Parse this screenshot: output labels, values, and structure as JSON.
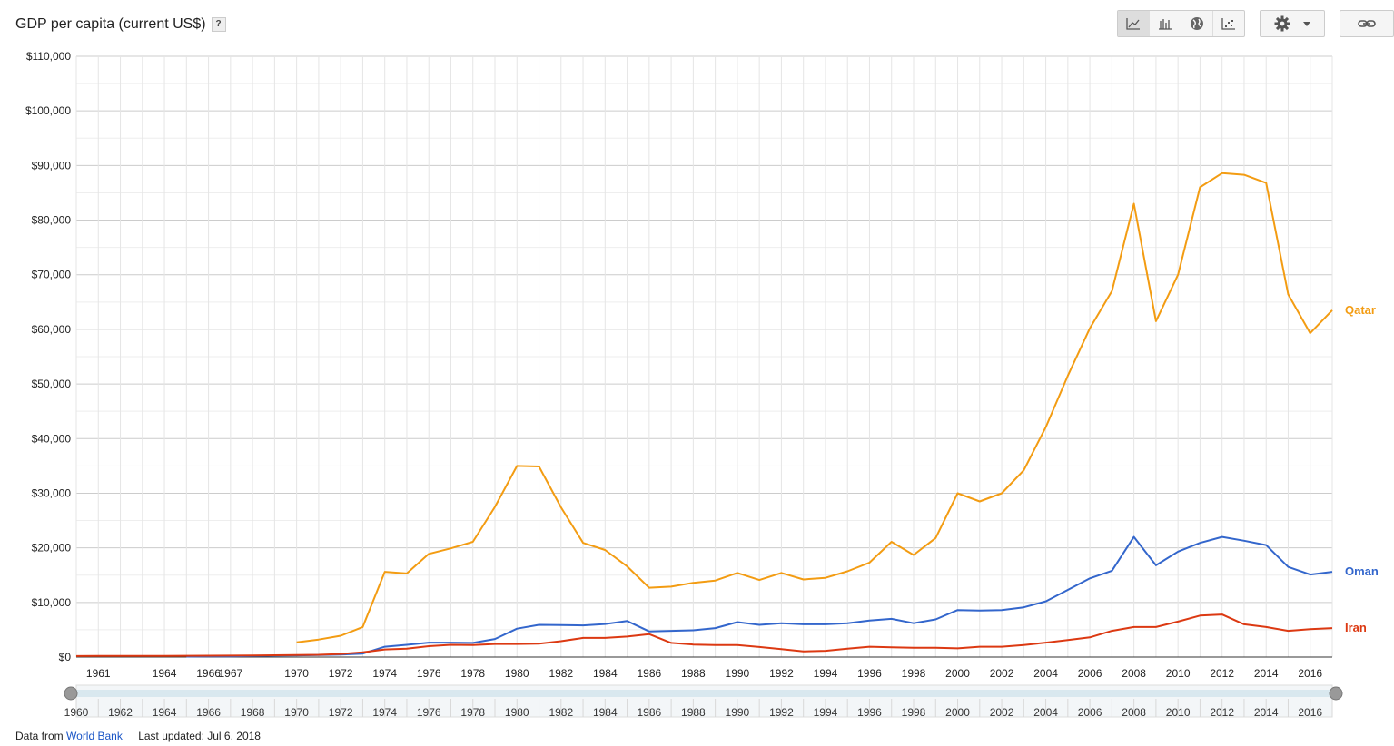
{
  "title": "GDP per capita (current US$)",
  "help_label": "?",
  "toolbar": {
    "buttons": [
      {
        "icon": "line-chart-icon",
        "active": true
      },
      {
        "icon": "bar-chart-icon",
        "active": false
      },
      {
        "icon": "globe-icon",
        "active": false
      },
      {
        "icon": "scatter-chart-icon",
        "active": false
      }
    ],
    "settings_icon": "gear-icon",
    "dropdown_icon": "caret-down-icon",
    "link_icon": "link-icon"
  },
  "footer": {
    "prefix": "Data from",
    "source": "World Bank",
    "updated": "Last updated: Jul 6, 2018"
  },
  "chart_data": {
    "type": "line",
    "title": "GDP per capita (current US$)",
    "xlabel": "",
    "ylabel": "",
    "xlim": [
      1960,
      2017
    ],
    "ylim": [
      0,
      110000
    ],
    "y_ticks": [
      0,
      10000,
      20000,
      30000,
      40000,
      50000,
      60000,
      70000,
      80000,
      90000,
      100000,
      110000
    ],
    "y_tick_labels": [
      "$0",
      "$10,000",
      "$20,000",
      "$30,000",
      "$40,000",
      "$50,000",
      "$60,000",
      "$70,000",
      "$80,000",
      "$90,000",
      "$100,000",
      "$110,000"
    ],
    "x_tick_labels": [
      "1961",
      "1964",
      "1966",
      "1967",
      "1970",
      "1972",
      "1974",
      "1976",
      "1978",
      "1980",
      "1982",
      "1984",
      "1986",
      "1988",
      "1990",
      "1992",
      "1994",
      "1996",
      "1998",
      "2000",
      "2002",
      "2004",
      "2006",
      "2008",
      "2010",
      "2012",
      "2014",
      "2016"
    ],
    "grid": true,
    "legend": "right-inline",
    "range_slider_labels": [
      "1960",
      "1962",
      "1964",
      "1966",
      "1968",
      "1970",
      "1972",
      "1974",
      "1976",
      "1978",
      "1980",
      "1982",
      "1984",
      "1986",
      "1988",
      "1990",
      "1992",
      "1994",
      "1996",
      "1998",
      "2000",
      "2002",
      "2004",
      "2006",
      "2008",
      "2010",
      "2012",
      "2014",
      "2016"
    ],
    "series": [
      {
        "name": "Qatar",
        "color": "#f39c12",
        "x": [
          1970,
          1971,
          1972,
          1973,
          1974,
          1975,
          1976,
          1977,
          1978,
          1979,
          1980,
          1981,
          1982,
          1983,
          1984,
          1985,
          1986,
          1987,
          1988,
          1989,
          1990,
          1991,
          1992,
          1993,
          1994,
          1995,
          1996,
          1997,
          1998,
          1999,
          2000,
          2001,
          2002,
          2003,
          2004,
          2005,
          2006,
          2007,
          2008,
          2009,
          2010,
          2011,
          2012,
          2013,
          2014,
          2015,
          2016,
          2017
        ],
        "values": [
          2700,
          3200,
          3900,
          5500,
          15600,
          15300,
          18900,
          19900,
          21100,
          27500,
          35000,
          34900,
          27400,
          20900,
          19600,
          16600,
          12700,
          12900,
          13600,
          14000,
          15400,
          14100,
          15400,
          14200,
          14500,
          15700,
          17300,
          21100,
          18700,
          21800,
          30000,
          28500,
          30000,
          34200,
          42100,
          51500,
          60200,
          67000,
          83000,
          61500,
          70000,
          86000,
          88600,
          88300,
          86800,
          66400,
          59300,
          63500
        ]
      },
      {
        "name": "Oman",
        "color": "#3366cc",
        "x": [
          1965,
          1966,
          1967,
          1968,
          1969,
          1970,
          1971,
          1972,
          1973,
          1974,
          1975,
          1976,
          1977,
          1978,
          1979,
          1980,
          1981,
          1982,
          1983,
          1984,
          1985,
          1986,
          1987,
          1988,
          1989,
          1990,
          1991,
          1992,
          1993,
          1994,
          1995,
          1996,
          1997,
          1998,
          1999,
          2000,
          2001,
          2002,
          2003,
          2004,
          2005,
          2006,
          2007,
          2008,
          2009,
          2010,
          2011,
          2012,
          2013,
          2014,
          2015,
          2016,
          2017
        ],
        "values": [
          90,
          110,
          140,
          200,
          260,
          320,
          380,
          450,
          630,
          1900,
          2250,
          2650,
          2650,
          2600,
          3300,
          5200,
          5900,
          5850,
          5800,
          6050,
          6600,
          4700,
          4800,
          4900,
          5300,
          6400,
          5900,
          6200,
          6000,
          6000,
          6200,
          6700,
          7000,
          6200,
          6900,
          8600,
          8500,
          8600,
          9100,
          10200,
          12300,
          14400,
          15800,
          22000,
          16800,
          19300,
          20900,
          22000,
          21300,
          20500,
          16500,
          15100,
          15600
        ]
      },
      {
        "name": "Iran",
        "color": "#dc3912",
        "x": [
          1960,
          1961,
          1962,
          1963,
          1964,
          1965,
          1966,
          1967,
          1968,
          1969,
          1970,
          1971,
          1972,
          1973,
          1974,
          1975,
          1976,
          1977,
          1978,
          1979,
          1980,
          1981,
          1982,
          1983,
          1984,
          1985,
          1986,
          1987,
          1988,
          1989,
          1990,
          1991,
          1992,
          1993,
          1994,
          1995,
          1996,
          1997,
          1998,
          1999,
          2000,
          2001,
          2002,
          2003,
          2004,
          2005,
          2006,
          2007,
          2008,
          2009,
          2010,
          2011,
          2012,
          2013,
          2014,
          2015,
          2016,
          2017
        ],
        "values": [
          190,
          200,
          200,
          200,
          210,
          230,
          250,
          270,
          300,
          330,
          360,
          420,
          560,
          880,
          1400,
          1550,
          2000,
          2250,
          2200,
          2400,
          2400,
          2450,
          2900,
          3500,
          3500,
          3750,
          4200,
          2600,
          2300,
          2200,
          2200,
          1850,
          1450,
          1050,
          1150,
          1550,
          1900,
          1800,
          1700,
          1700,
          1600,
          1900,
          1900,
          2200,
          2650,
          3100,
          3600,
          4800,
          5500,
          5500,
          6500,
          7600,
          7800,
          6000,
          5500,
          4800,
          5100,
          5300
        ]
      }
    ]
  }
}
